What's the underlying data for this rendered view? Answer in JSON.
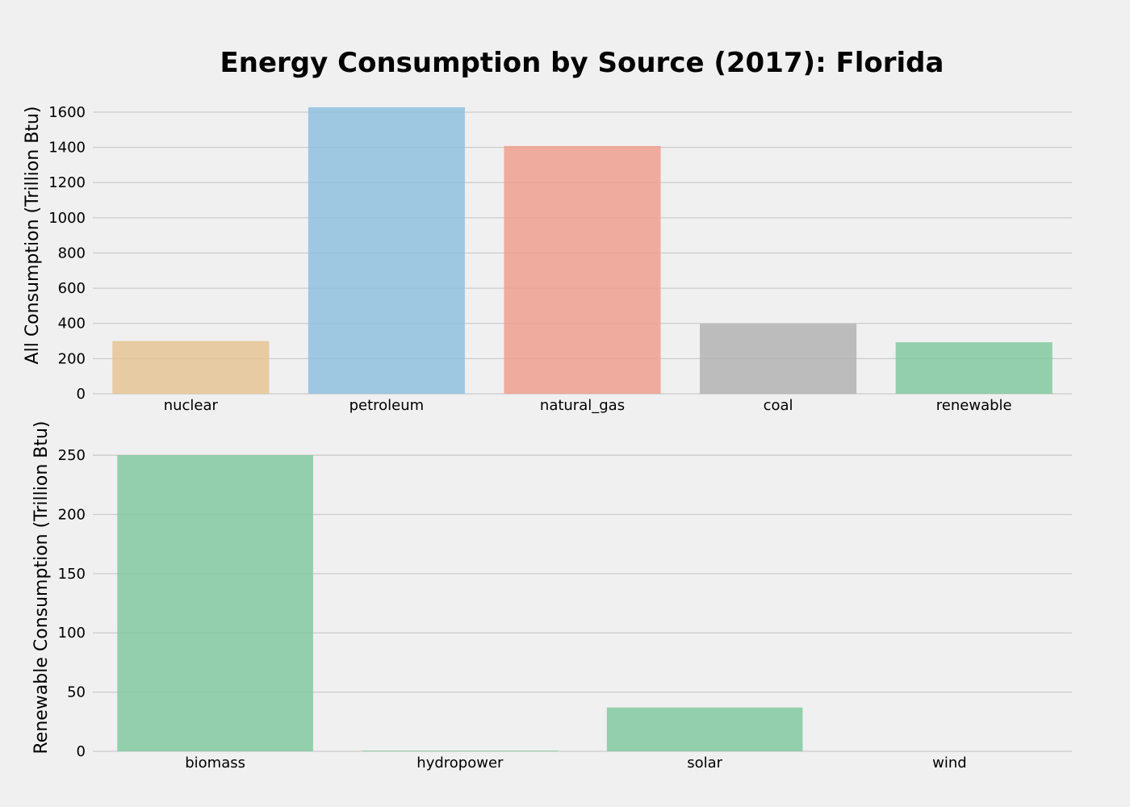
{
  "chart_data": [
    {
      "type": "bar",
      "title": "Energy Consumption by Source (2017): Florida",
      "categories": [
        "nuclear",
        "petroleum",
        "natural_gas",
        "coal",
        "renewable"
      ],
      "values": [
        300,
        1628,
        1408,
        398,
        293
      ],
      "colors": [
        "#e5c494",
        "#8fbfdf",
        "#ef9f8f",
        "#b3b3b3",
        "#82c9a0"
      ],
      "ylabel": "All Consumption (Trillion Btu)",
      "xlabel": "",
      "yticks": [
        0,
        200,
        400,
        600,
        800,
        1000,
        1200,
        1400,
        1600
      ],
      "ylim": [
        0,
        1710
      ],
      "grid": true
    },
    {
      "type": "bar",
      "categories": [
        "biomass",
        "hydropower",
        "solar",
        "wind"
      ],
      "values": [
        250,
        0.6,
        37,
        0
      ],
      "colors": [
        "#82c9a0",
        "#82c9a0",
        "#82c9a0",
        "#82c9a0"
      ],
      "ylabel": "Renewable Consumption (Trillion Btu)",
      "xlabel": "",
      "yticks": [
        0,
        50,
        100,
        150,
        200,
        250
      ],
      "ylim": [
        0,
        263
      ],
      "grid": true
    }
  ]
}
